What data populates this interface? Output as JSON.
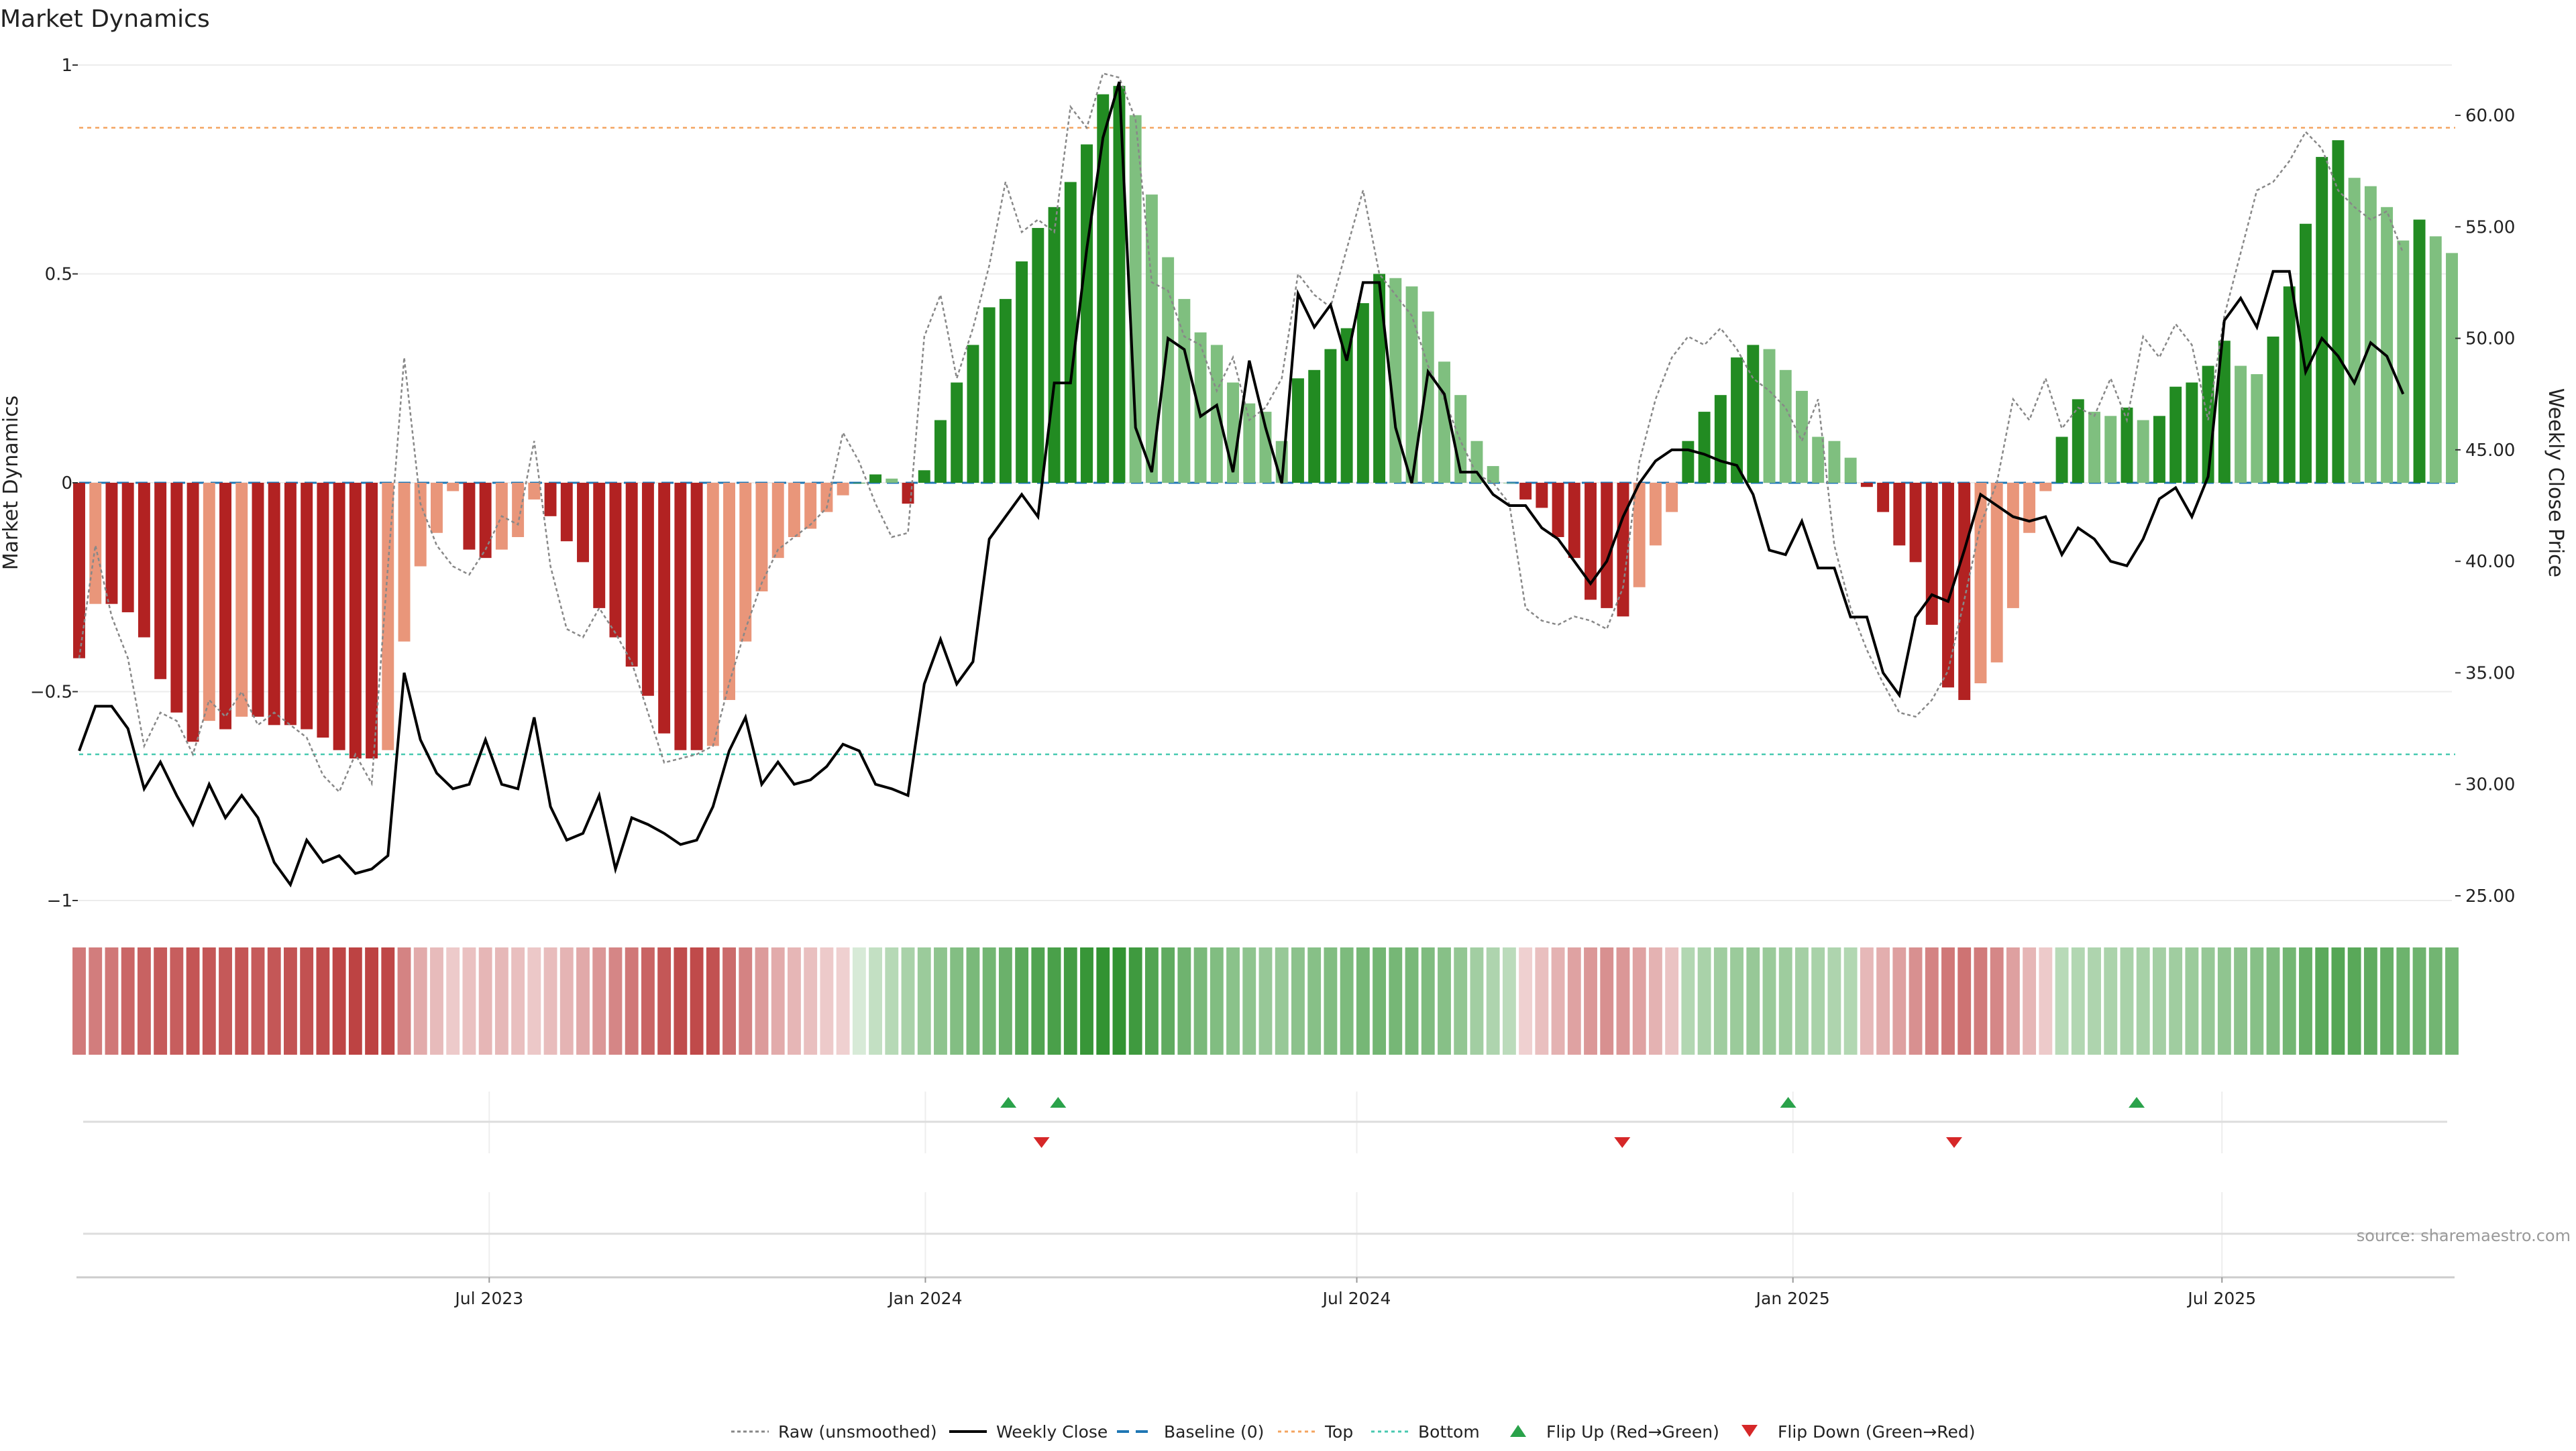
{
  "title": "Market Dynamics",
  "source": "source: sharemaestro.com",
  "chart_data": {
    "type": "bar",
    "left_axis": {
      "label": "Market Dynamics",
      "min": -1,
      "max": 1,
      "ticks": [
        "1",
        "0.5",
        "0",
        "−0.5",
        "−1"
      ],
      "tick_values": [
        1,
        0.5,
        0,
        -0.5,
        -1
      ]
    },
    "right_axis": {
      "label": "Weekly Close Price",
      "min": 25,
      "max": 60,
      "ticks": [
        "60.00",
        "55.00",
        "50.00",
        "45.00",
        "40.00",
        "35.00",
        "30.00",
        "25.00"
      ],
      "tick_values": [
        60,
        55,
        50,
        45,
        40,
        35,
        30,
        25
      ]
    },
    "x_axis": {
      "start": "2023-01-09",
      "end": "2025-10-06",
      "ticks": [
        "Jul 2023",
        "Jan 2024",
        "Jul 2024",
        "Jan 2025",
        "Jul 2025"
      ],
      "tick_dates": [
        "2023-07-01",
        "2024-01-01",
        "2024-07-01",
        "2025-01-01",
        "2025-07-01"
      ]
    },
    "grid": true,
    "reference_lines": {
      "baseline": 0,
      "top": 0.85,
      "bottom": -0.65
    },
    "colors": {
      "strong_negative": "#b22222",
      "weak_negative": "#e9967a",
      "strong_positive": "#228b22",
      "weak_positive": "#7fbf7f",
      "close": "#000000",
      "raw": "#888888",
      "baseline": "#1f77b4",
      "top": "#f4a460",
      "bottom": "#48c9b0",
      "flip_up": "#2aa24a",
      "flip_down": "#d62728"
    },
    "bars": [
      -0.42,
      -0.29,
      -0.29,
      -0.31,
      -0.37,
      -0.47,
      -0.55,
      -0.62,
      -0.57,
      -0.59,
      -0.56,
      -0.56,
      -0.58,
      -0.58,
      -0.59,
      -0.61,
      -0.64,
      -0.66,
      -0.66,
      -0.64,
      -0.38,
      -0.2,
      -0.12,
      -0.02,
      -0.16,
      -0.18,
      -0.16,
      -0.13,
      -0.04,
      -0.08,
      -0.14,
      -0.19,
      -0.3,
      -0.37,
      -0.44,
      -0.51,
      -0.6,
      -0.64,
      -0.64,
      -0.63,
      -0.52,
      -0.38,
      -0.26,
      -0.18,
      -0.13,
      -0.11,
      -0.07,
      -0.03,
      0.0,
      0.02,
      0.01,
      -0.05,
      0.03,
      0.15,
      0.24,
      0.33,
      0.42,
      0.44,
      0.53,
      0.61,
      0.66,
      0.72,
      0.81,
      0.93,
      0.95,
      0.88,
      0.69,
      0.54,
      0.44,
      0.36,
      0.33,
      0.24,
      0.19,
      0.17,
      0.1,
      0.25,
      0.27,
      0.32,
      0.37,
      0.43,
      0.5,
      0.49,
      0.47,
      0.41,
      0.29,
      0.21,
      0.1,
      0.04,
      0.0,
      -0.04,
      -0.06,
      -0.13,
      -0.18,
      -0.28,
      -0.3,
      -0.32,
      -0.25,
      -0.15,
      -0.07,
      0.1,
      0.17,
      0.21,
      0.3,
      0.33,
      0.32,
      0.27,
      0.22,
      0.11,
      0.1,
      0.06,
      -0.01,
      -0.07,
      -0.15,
      -0.19,
      -0.34,
      -0.49,
      -0.52,
      -0.48,
      -0.43,
      -0.3,
      -0.12,
      -0.02,
      0.11,
      0.2,
      0.17,
      0.16,
      0.18,
      0.15,
      0.16,
      0.23,
      0.24,
      0.28,
      0.34,
      0.28,
      0.26,
      0.35,
      0.47,
      0.62,
      0.78,
      0.82,
      0.73,
      0.71,
      0.66,
      0.58,
      0.63,
      0.59,
      0.55
    ],
    "raw": [
      -0.42,
      -0.15,
      -0.32,
      -0.42,
      -0.63,
      -0.55,
      -0.57,
      -0.65,
      -0.52,
      -0.56,
      -0.5,
      -0.58,
      -0.55,
      -0.58,
      -0.61,
      -0.7,
      -0.74,
      -0.65,
      -0.72,
      -0.2,
      0.3,
      -0.05,
      -0.15,
      -0.2,
      -0.22,
      -0.16,
      -0.08,
      -0.1,
      0.1,
      -0.2,
      -0.35,
      -0.37,
      -0.3,
      -0.36,
      -0.43,
      -0.55,
      -0.67,
      -0.66,
      -0.65,
      -0.63,
      -0.48,
      -0.35,
      -0.24,
      -0.16,
      -0.13,
      -0.1,
      -0.06,
      0.12,
      0.05,
      -0.05,
      -0.13,
      -0.12,
      0.35,
      0.45,
      0.25,
      0.37,
      0.52,
      0.72,
      0.6,
      0.63,
      0.6,
      0.9,
      0.85,
      0.98,
      0.97,
      0.87,
      0.48,
      0.46,
      0.35,
      0.33,
      0.22,
      0.3,
      0.15,
      0.18,
      0.25,
      0.5,
      0.45,
      0.42,
      0.56,
      0.7,
      0.5,
      0.45,
      0.4,
      0.28,
      0.2,
      0.1,
      0.02,
      0.0,
      -0.05,
      -0.3,
      -0.33,
      -0.34,
      -0.32,
      -0.33,
      -0.35,
      -0.25,
      0.05,
      0.2,
      0.3,
      0.35,
      0.33,
      0.37,
      0.32,
      0.25,
      0.22,
      0.18,
      0.1,
      0.2,
      -0.15,
      -0.3,
      -0.4,
      -0.48,
      -0.55,
      -0.56,
      -0.52,
      -0.45,
      -0.28,
      -0.1,
      0.0,
      0.2,
      0.15,
      0.25,
      0.13,
      0.18,
      0.16,
      0.25,
      0.15,
      0.35,
      0.3,
      0.38,
      0.33,
      0.15,
      0.4,
      0.55,
      0.7,
      0.72,
      0.77,
      0.84,
      0.8,
      0.7,
      0.66,
      0.63,
      0.65,
      0.55
    ],
    "close": [
      31.5,
      33.5,
      33.5,
      32.5,
      29.8,
      31.0,
      29.5,
      28.2,
      30.0,
      28.5,
      29.5,
      28.5,
      26.5,
      25.5,
      27.5,
      26.5,
      26.8,
      26.0,
      26.2,
      26.8,
      35.0,
      32.0,
      30.5,
      29.8,
      30.0,
      32.0,
      30.0,
      29.8,
      33.0,
      29.0,
      27.5,
      27.8,
      29.5,
      26.2,
      28.5,
      28.2,
      27.8,
      27.3,
      27.5,
      29.0,
      31.5,
      33.0,
      30.0,
      31.0,
      30.0,
      30.2,
      30.8,
      31.8,
      31.5,
      30.0,
      29.8,
      29.5,
      34.5,
      36.5,
      34.5,
      35.5,
      41.0,
      42.0,
      43.0,
      42.0,
      48.0,
      48.0,
      54.0,
      59.0,
      61.5,
      46.0,
      44.0,
      50.0,
      49.5,
      46.5,
      47.0,
      44.0,
      49.0,
      46.0,
      43.5,
      52.0,
      50.5,
      51.5,
      49.0,
      52.5,
      52.5,
      46.0,
      43.5,
      48.5,
      47.5,
      44.0,
      44.0,
      43.0,
      42.5,
      42.5,
      41.5,
      41.0,
      40.0,
      39.0,
      40.0,
      42.0,
      43.5,
      44.5,
      45.0,
      45.0,
      44.8,
      44.5,
      44.3,
      43.0,
      40.5,
      40.3,
      41.8,
      39.7,
      39.7,
      37.5,
      37.5,
      35.0,
      34.0,
      37.5,
      38.5,
      38.2,
      40.5,
      43.0,
      42.5,
      42.0,
      41.8,
      42.0,
      40.3,
      41.5,
      41.0,
      40.0,
      39.8,
      41.0,
      42.8,
      43.3,
      42.0,
      43.8,
      50.8,
      51.8,
      50.5,
      53.0,
      53.0,
      48.5,
      50.0,
      49.2,
      48.0,
      49.8,
      49.2,
      47.5
    ],
    "heat_strip": [
      -0.42,
      -0.41,
      -0.43,
      -0.5,
      -0.52,
      -0.55,
      -0.54,
      -0.58,
      -0.57,
      -0.56,
      -0.58,
      -0.55,
      -0.57,
      -0.59,
      -0.6,
      -0.62,
      -0.65,
      -0.66,
      -0.66,
      -0.64,
      -0.38,
      -0.21,
      -0.14,
      -0.08,
      -0.11,
      -0.16,
      -0.15,
      -0.12,
      -0.09,
      -0.13,
      -0.17,
      -0.22,
      -0.3,
      -0.37,
      -0.43,
      -0.51,
      -0.57,
      -0.62,
      -0.63,
      -0.6,
      -0.49,
      -0.38,
      -0.28,
      -0.21,
      -0.16,
      -0.12,
      -0.08,
      -0.05,
      0.02,
      0.1,
      0.16,
      0.22,
      0.28,
      0.33,
      0.38,
      0.42,
      0.45,
      0.49,
      0.55,
      0.6,
      0.63,
      0.66,
      0.7,
      0.73,
      0.73,
      0.68,
      0.6,
      0.53,
      0.47,
      0.42,
      0.39,
      0.35,
      0.33,
      0.3,
      0.3,
      0.34,
      0.36,
      0.39,
      0.41,
      0.44,
      0.45,
      0.44,
      0.43,
      0.4,
      0.36,
      0.31,
      0.25,
      0.2,
      0.14,
      -0.05,
      -0.12,
      -0.18,
      -0.25,
      -0.3,
      -0.32,
      -0.3,
      -0.25,
      -0.18,
      -0.1,
      0.18,
      0.22,
      0.26,
      0.28,
      0.3,
      0.29,
      0.27,
      0.24,
      0.22,
      0.2,
      0.18,
      -0.15,
      -0.2,
      -0.26,
      -0.32,
      -0.38,
      -0.43,
      -0.45,
      -0.42,
      -0.36,
      -0.26,
      -0.16,
      -0.08,
      0.15,
      0.18,
      0.2,
      0.21,
      0.22,
      0.23,
      0.24,
      0.26,
      0.28,
      0.3,
      0.32,
      0.34,
      0.36,
      0.4,
      0.45,
      0.5,
      0.55,
      0.58,
      0.56,
      0.53,
      0.5,
      0.48,
      0.47,
      0.46,
      0.45
    ],
    "flips": [
      {
        "date": "2024-02-05",
        "type": "up"
      },
      {
        "date": "2024-02-26",
        "type": "up"
      },
      {
        "date": "2024-02-19",
        "type": "down"
      },
      {
        "date": "2024-10-21",
        "type": "down"
      },
      {
        "date": "2024-12-30",
        "type": "up"
      },
      {
        "date": "2025-03-10",
        "type": "down"
      },
      {
        "date": "2025-05-26",
        "type": "up"
      }
    ],
    "legend": {
      "placement": "bottom",
      "items": [
        {
          "label": "Raw (unsmoothed)",
          "kind": "raw"
        },
        {
          "label": "Weekly Close",
          "kind": "close"
        },
        {
          "label": "Baseline (0)",
          "kind": "baseline"
        },
        {
          "label": "Top",
          "kind": "top"
        },
        {
          "label": "Bottom",
          "kind": "bottom"
        },
        {
          "label": "Flip Up (Red→Green)",
          "kind": "flip_up"
        },
        {
          "label": "Flip Down (Green→Red)",
          "kind": "flip_down"
        }
      ]
    }
  }
}
